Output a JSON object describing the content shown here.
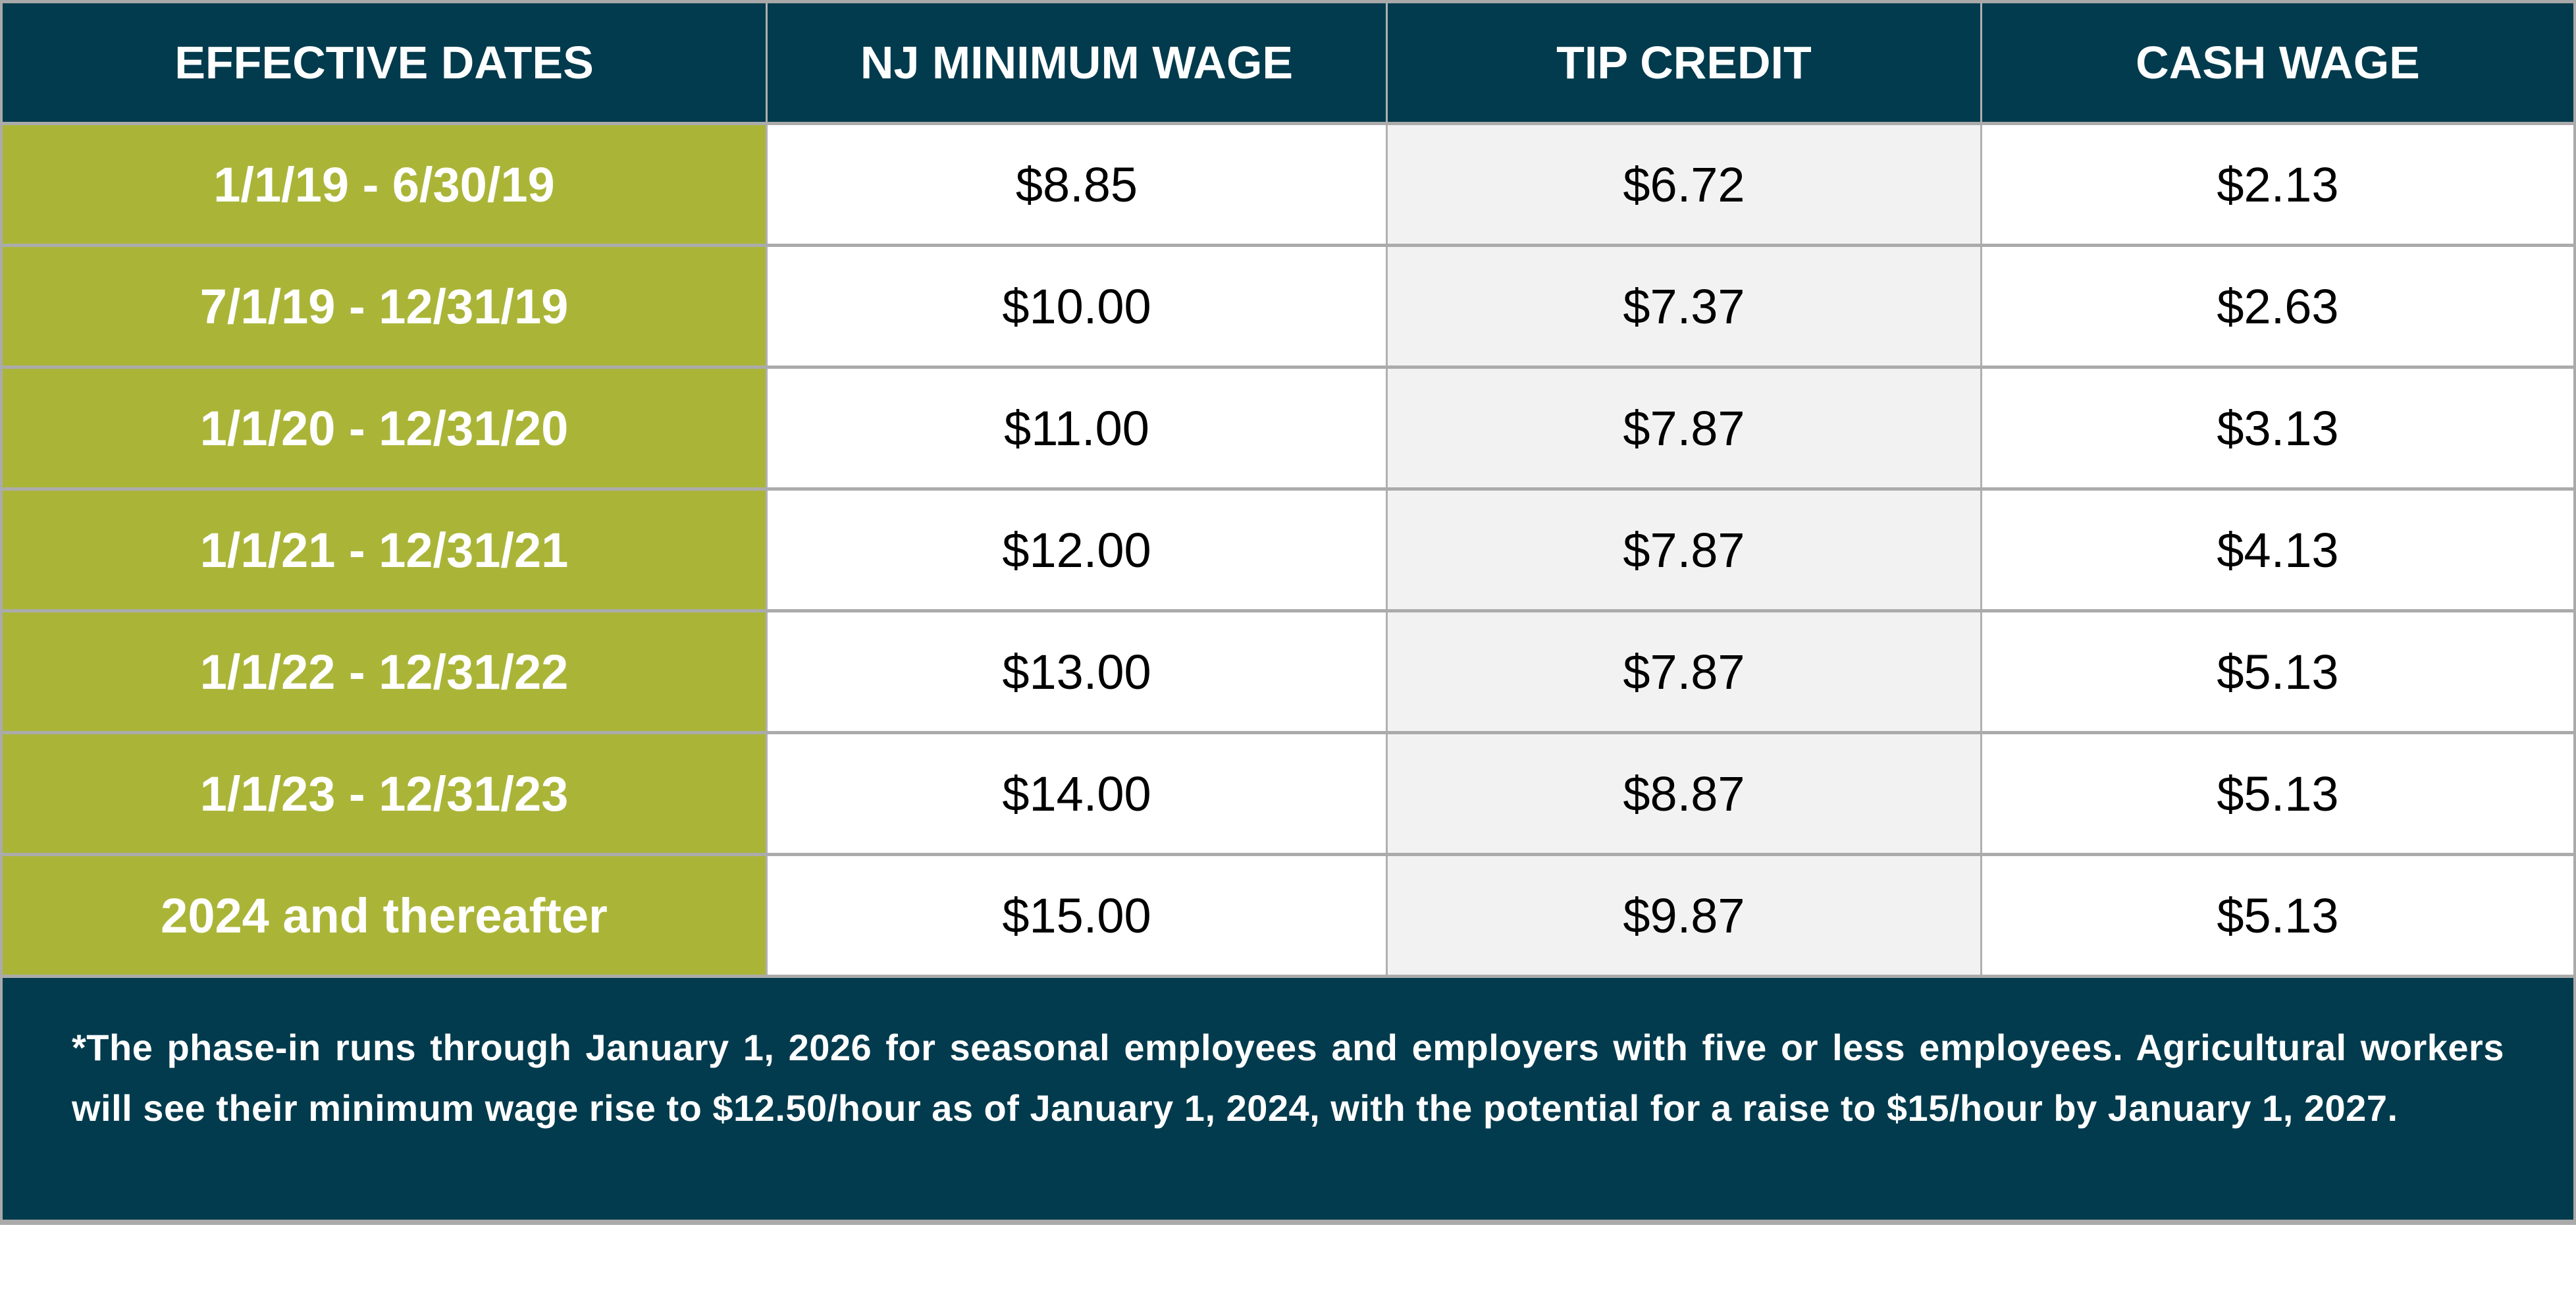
{
  "table": {
    "headers": [
      "EFFECTIVE DATES",
      "NJ MINIMUM WAGE",
      "TIP CREDIT",
      "CASH WAGE"
    ],
    "rows": [
      [
        "1/1/19 - 6/30/19",
        "$8.85",
        "$6.72",
        "$2.13"
      ],
      [
        "7/1/19 - 12/31/19",
        "$10.00",
        "$7.37",
        "$2.63"
      ],
      [
        "1/1/20 - 12/31/20",
        "$11.00",
        "$7.87",
        "$3.13"
      ],
      [
        "1/1/21 - 12/31/21",
        "$12.00",
        "$7.87",
        "$4.13"
      ],
      [
        "1/1/22 - 12/31/22",
        "$13.00",
        "$7.87",
        "$5.13"
      ],
      [
        "1/1/23 - 12/31/23",
        "$14.00",
        "$8.87",
        "$5.13"
      ],
      [
        "2024 and thereafter",
        "$15.00",
        "$9.87",
        "$5.13"
      ]
    ],
    "footnote": "*The phase-in runs through January 1, 2026 for seasonal employees and employers with five or less employees. Agricultural workers will see their minimum wage rise to $12.50/hour as of January 1, 2024, with the potential for a raise to $15/hour by January 1, 2027."
  },
  "colors": {
    "header": "#023b4d",
    "date_column": "#aab538",
    "shaded_column": "#f2f2f2"
  }
}
